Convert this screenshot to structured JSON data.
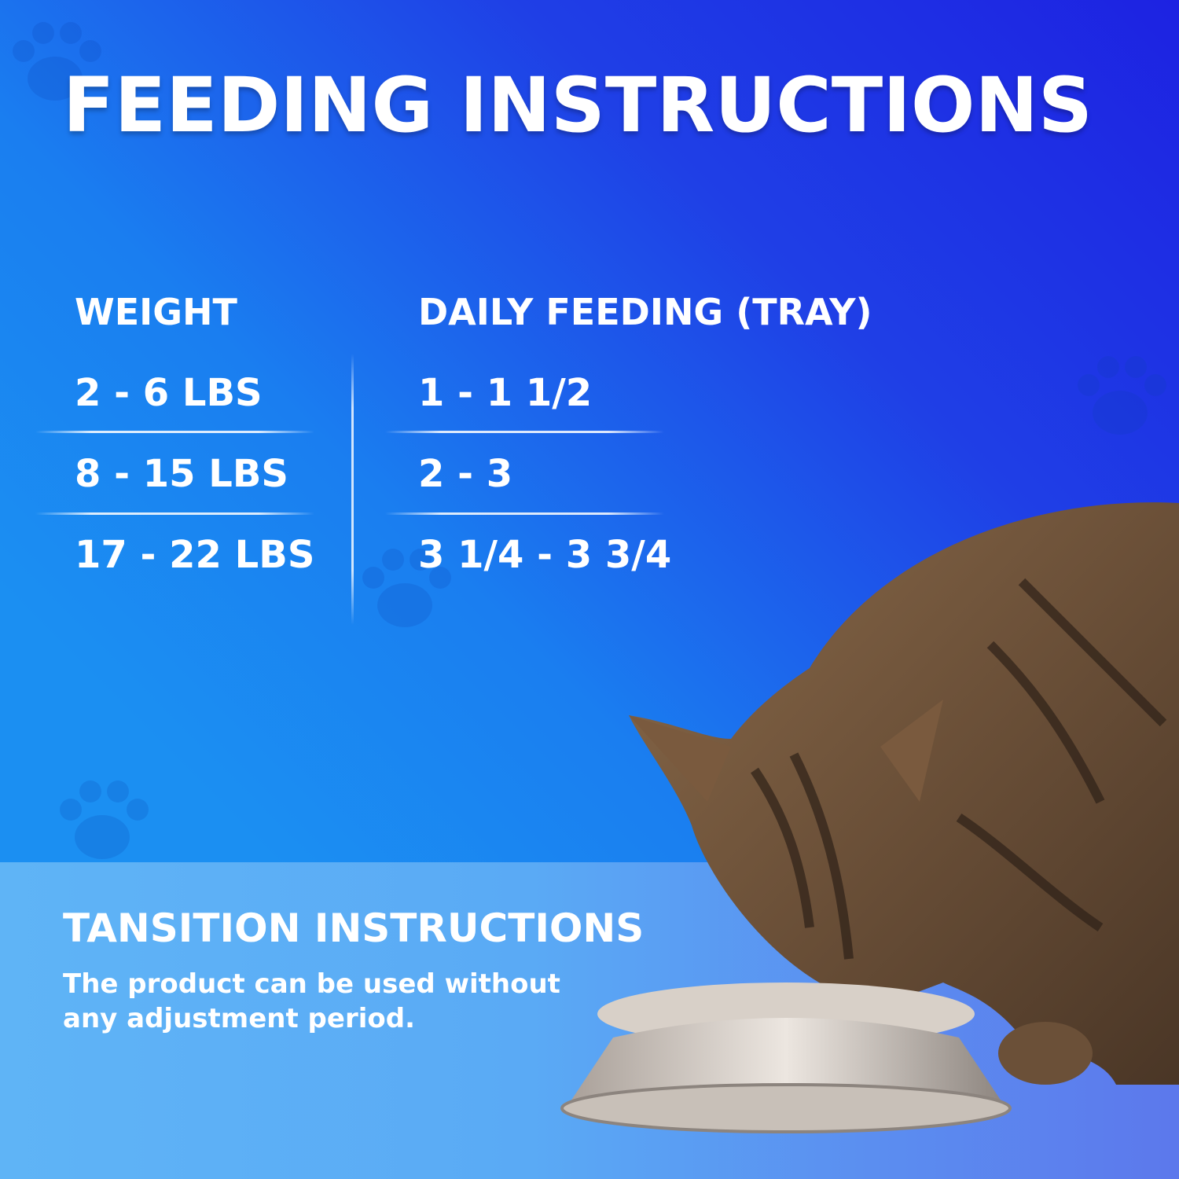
{
  "title": "FEEDING INSTRUCTIONS",
  "table": {
    "headers": {
      "weight": "WEIGHT",
      "feeding": "DAILY FEEDING (TRAY)"
    },
    "rows": [
      {
        "weight": "2 - 6 LBS",
        "feeding": "1 - 1 1/2"
      },
      {
        "weight": "8 - 15 LBS",
        "feeding": "2 - 3"
      },
      {
        "weight": "17 - 22 LBS",
        "feeding": "3 1/4 - 3 3/4"
      }
    ]
  },
  "transition": {
    "title": "TANSITION INSTRUCTIONS",
    "body": "The product can be used without any adjustment period."
  },
  "colors": {
    "bg_light": "#1b8ff2",
    "bg_dark": "#1d22e2",
    "band": "#5fb4f6"
  },
  "image": "cat-eating-from-bowl"
}
